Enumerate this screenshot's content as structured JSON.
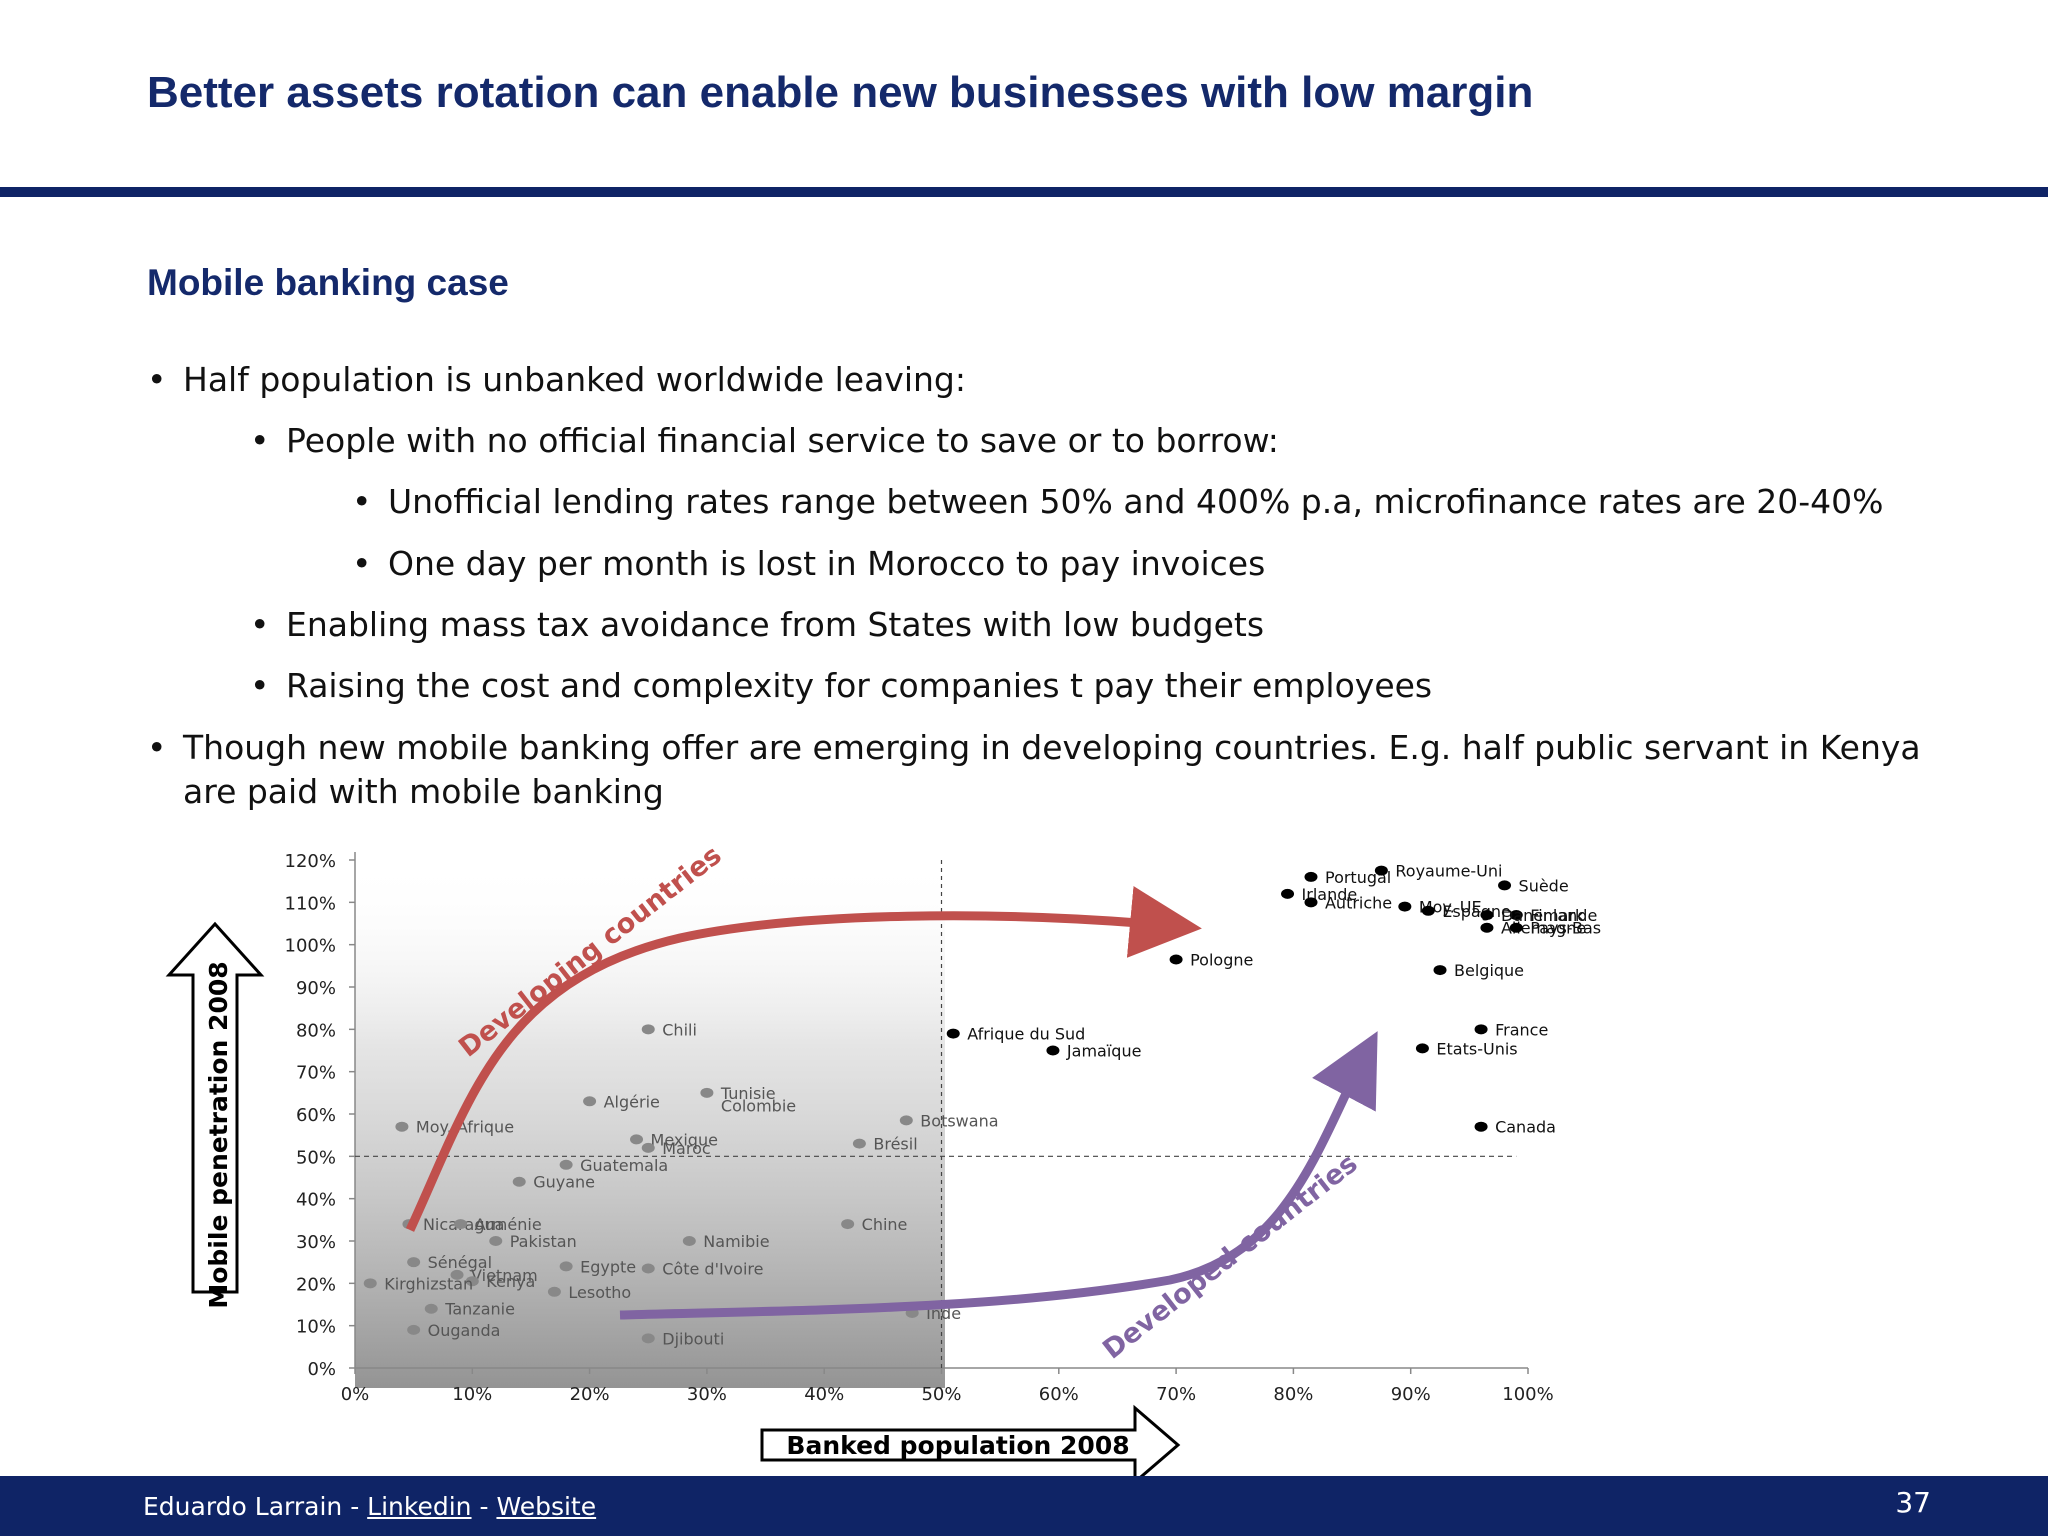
{
  "slide": {
    "title": "Better assets rotation can enable new businesses with low margin",
    "subtitle": "Mobile banking case"
  },
  "bullets": [
    {
      "level": 1,
      "text": "Half population is unbanked worldwide leaving:"
    },
    {
      "level": 2,
      "text": "People with no official financial service to save or to borrow:"
    },
    {
      "level": 3,
      "text": "Unofficial lending rates range between 50% and 400% p.a, microfinance rates are 20-40%"
    },
    {
      "level": 3,
      "text": "One day per month is lost in Morocco to pay invoices"
    },
    {
      "level": 2,
      "text": "Enabling mass tax avoidance from States with low budgets"
    },
    {
      "level": 2,
      "text": "Raising the cost and complexity for companies t pay their employees"
    },
    {
      "level": 1,
      "text": "Though new mobile banking offer are emerging in developing countries. E.g. half public servant in Kenya"
    },
    {
      "level": 1,
      "text": "are paid with mobile banking",
      "continuation": true
    }
  ],
  "bullet_char": "•",
  "chart_data": {
    "type": "scatter",
    "xlabel": "Banked population 2008",
    "ylabel": "Mobile penetration 2008",
    "xlim": [
      0,
      100
    ],
    "ylim": [
      0,
      120
    ],
    "x_ticks": [
      "0%",
      "10%",
      "20%",
      "30%",
      "40%",
      "50%",
      "60%",
      "70%",
      "80%",
      "90%",
      "100%"
    ],
    "y_ticks": [
      "0%",
      "10%",
      "20%",
      "30%",
      "40%",
      "50%",
      "60%",
      "70%",
      "80%",
      "90%",
      "100%",
      "110%",
      "120%"
    ],
    "reference_lines": {
      "x": 50,
      "y": 50
    },
    "annotations": [
      "Developing countries",
      "Developed countries"
    ],
    "colors": {
      "developing_points": "#888888",
      "developed_points": "#000000",
      "developing_arrow": "#c0504d",
      "developed_arrow": "#8064a2"
    },
    "points": [
      {
        "label": "Moy. Afrique",
        "x": 4,
        "y": 57,
        "group": "developing"
      },
      {
        "label": "Nicaragua",
        "x": 4.6,
        "y": 34,
        "group": "developing"
      },
      {
        "label": "Arménie",
        "x": 9,
        "y": 34,
        "group": "developing"
      },
      {
        "label": "Pakistan",
        "x": 12,
        "y": 30,
        "group": "developing"
      },
      {
        "label": "Sénégal",
        "x": 5,
        "y": 25,
        "group": "developing"
      },
      {
        "label": "Vietnam",
        "x": 8.7,
        "y": 22,
        "group": "developing"
      },
      {
        "label": "Kenya",
        "x": 10,
        "y": 20.5,
        "group": "developing"
      },
      {
        "label": "Kirghizstan",
        "x": 1.3,
        "y": 20,
        "group": "developing"
      },
      {
        "label": "Tanzanie",
        "x": 6.5,
        "y": 14,
        "group": "developing"
      },
      {
        "label": "Ouganda",
        "x": 5,
        "y": 9,
        "group": "developing"
      },
      {
        "label": "Guyane",
        "x": 14,
        "y": 44,
        "group": "developing"
      },
      {
        "label": "Guatemala",
        "x": 18,
        "y": 48,
        "group": "developing"
      },
      {
        "label": "Algérie",
        "x": 20,
        "y": 63,
        "group": "developing"
      },
      {
        "label": "Mexique",
        "x": 24,
        "y": 54,
        "group": "developing"
      },
      {
        "label": "Maroc",
        "x": 25,
        "y": 52,
        "group": "developing"
      },
      {
        "label": "Chili",
        "x": 25,
        "y": 80,
        "group": "developing"
      },
      {
        "label": "Tunisie",
        "x": 30,
        "y": 65,
        "group": "developing"
      },
      {
        "label": "Colombie",
        "x": 30,
        "y": 62,
        "group": "developing",
        "no_marker": true
      },
      {
        "label": "Brésil",
        "x": 43,
        "y": 53,
        "group": "developing"
      },
      {
        "label": "Botswana",
        "x": 47,
        "y": 58.5,
        "group": "developing"
      },
      {
        "label": "Chine",
        "x": 42,
        "y": 34,
        "group": "developing"
      },
      {
        "label": "Namibie",
        "x": 28.5,
        "y": 30,
        "group": "developing"
      },
      {
        "label": "Egypte",
        "x": 18,
        "y": 24,
        "group": "developing"
      },
      {
        "label": "Côte d'Ivoire",
        "x": 25,
        "y": 23.5,
        "group": "developing"
      },
      {
        "label": "Lesotho",
        "x": 17,
        "y": 18,
        "group": "developing"
      },
      {
        "label": "Djibouti",
        "x": 25,
        "y": 7,
        "group": "developing"
      },
      {
        "label": "Inde",
        "x": 47.5,
        "y": 13,
        "group": "developing"
      },
      {
        "label": "Afrique du Sud",
        "x": 51,
        "y": 79,
        "group": "developed"
      },
      {
        "label": "Jamaïque",
        "x": 59.5,
        "y": 75,
        "group": "developed"
      },
      {
        "label": "Pologne",
        "x": 70,
        "y": 96.5,
        "group": "developed"
      },
      {
        "label": "Portugal",
        "x": 81.5,
        "y": 116,
        "group": "developed"
      },
      {
        "label": "Irlande",
        "x": 79.5,
        "y": 112,
        "group": "developed"
      },
      {
        "label": "Autriche",
        "x": 81.5,
        "y": 110,
        "group": "developed"
      },
      {
        "label": "Royaume-Uni",
        "x": 87.5,
        "y": 117.5,
        "group": "developed"
      },
      {
        "label": "Moy. UE",
        "x": 89.5,
        "y": 109,
        "group": "developed"
      },
      {
        "label": "Espagne",
        "x": 91.5,
        "y": 108,
        "group": "developed"
      },
      {
        "label": "Suède",
        "x": 98,
        "y": 114,
        "group": "developed"
      },
      {
        "label": "Finlande",
        "x": 99,
        "y": 107,
        "group": "developed"
      },
      {
        "label": "Danemark",
        "x": 96.5,
        "y": 107,
        "group": "developed"
      },
      {
        "label": "Allemagne",
        "x": 96.5,
        "y": 104,
        "group": "developed"
      },
      {
        "label": "Pays-Bas",
        "x": 99,
        "y": 104,
        "group": "developed"
      },
      {
        "label": "Belgique",
        "x": 92.5,
        "y": 94,
        "group": "developed"
      },
      {
        "label": "France",
        "x": 96,
        "y": 80,
        "group": "developed"
      },
      {
        "label": "Etats-Unis",
        "x": 91,
        "y": 75.5,
        "group": "developed"
      },
      {
        "label": "Canada",
        "x": 96,
        "y": 57,
        "group": "developed"
      }
    ]
  },
  "footer": {
    "author": "Eduardo Larrain - ",
    "link1": "Linkedin",
    "sep": " - ",
    "link2": "Website",
    "page": "37"
  }
}
